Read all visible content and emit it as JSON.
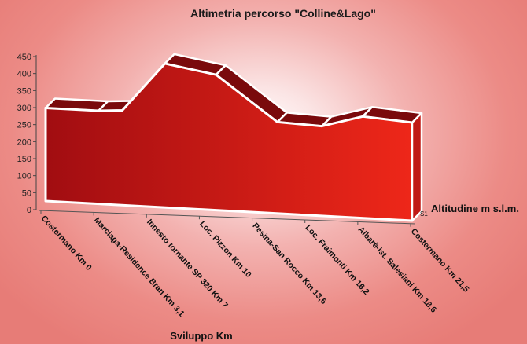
{
  "chart_data": {
    "type": "area",
    "title": "Altimetria percorso \"Colline&Lago\"",
    "xlabel": "Sviluppo Km",
    "ylabel": "",
    "ylim": [
      0,
      450
    ],
    "yticks": [
      0,
      50,
      100,
      150,
      200,
      250,
      300,
      350,
      400,
      450
    ],
    "categories": [
      "Costermano Km 0",
      "Marciaga-Residence Bran Km 3,1",
      "Innesto tornante SP 320 Km 7",
      "Loc. Pizzon Km 10",
      "Pesina-San Rocco Km 13,6",
      "Loc. Fraimonti Km 16,2",
      "Albarè-ist. Salesiani Km 18,6",
      "Costermano Km 21,5"
    ],
    "series": [
      {
        "name": "Altitudine m s.l.m.",
        "key": "S1",
        "x": [
          0,
          3.1,
          4.5,
          7,
          10,
          13.6,
          16.2,
          18.6,
          21.5
        ],
        "values": [
          275,
          275,
          280,
          425,
          400,
          270,
          265,
          300,
          290
        ]
      }
    ],
    "colors": {
      "fill_dark": "#a30f12",
      "fill_light": "#ea2418",
      "top_face": "#7a0a0c",
      "outline": "#ffffff"
    },
    "grid": false,
    "legend": "right"
  }
}
